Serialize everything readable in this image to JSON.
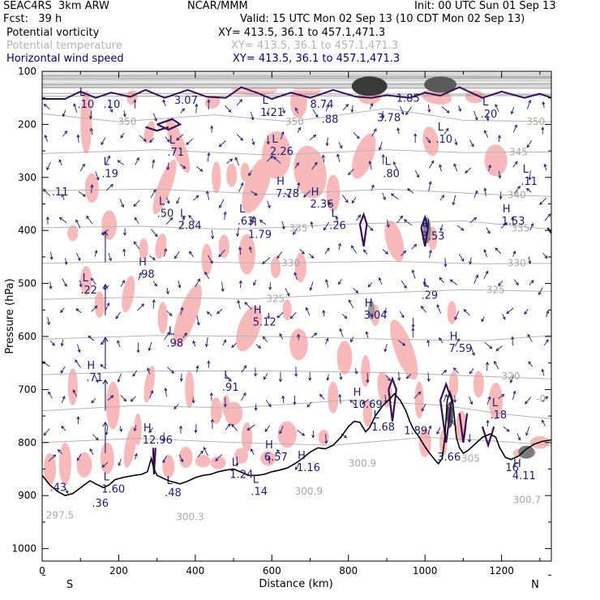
{
  "header": {
    "left_line1": "SEAC4RS  3km ARW",
    "left_line2": "Fcst:   39 h",
    "center": "NCAR/MMM",
    "init": "Init: 00 UTC Sun 01 Sep 13",
    "valid": "Valid: 15 UTC Mon 02 Sep 13 (10 CDT Mon 02 Sep 13)",
    "fields": [
      {
        "name": "Potential vorticity",
        "xy": "XY= 413.5, 36.1 to 457.1,471.3",
        "color": "#000000"
      },
      {
        "name": "Potential temperature",
        "xy": "XY= 413.5, 36.1 to 457.1,471.3",
        "color": "#b4b4b4"
      },
      {
        "name": "Horizontal wind speed",
        "xy": "XY= 413.5, 36.1 to 457.1,471.3",
        "color": "#00007a"
      }
    ]
  },
  "chart_data": {
    "type": "cross-section",
    "xlabel": "Distance (km)",
    "ylabel": "Pressure (hPa)",
    "xlim": [
      0,
      1320
    ],
    "ylim": [
      100,
      1050
    ],
    "y_scale": "linear, inverted",
    "x_ticks": [
      0,
      200,
      400,
      600,
      800,
      1000,
      1200
    ],
    "y_ticks": [
      100,
      200,
      300,
      400,
      500,
      600,
      700,
      800,
      900,
      1000
    ],
    "x_end_labels": {
      "left": "S",
      "right": "N"
    },
    "colors": {
      "theta_contour": "#b4b4b4",
      "pv_contour": "#3b0e5c",
      "pv_shading": "#f7b9b9",
      "wind_arrows": "#1c1c78",
      "terrain": "#000000"
    },
    "potential_temperature_labels": [
      {
        "x": 198,
        "p": 195,
        "text": "350"
      },
      {
        "x": 635,
        "p": 195,
        "text": "350"
      },
      {
        "x": 1265,
        "p": 195,
        "text": "350"
      },
      {
        "x": 1220,
        "p": 252,
        "text": "345"
      },
      {
        "x": 1215,
        "p": 333,
        "text": "340"
      },
      {
        "x": 645,
        "p": 396,
        "text": "335"
      },
      {
        "x": 1225,
        "p": 396,
        "text": "335"
      },
      {
        "x": 625,
        "p": 462,
        "text": "330"
      },
      {
        "x": 1215,
        "p": 462,
        "text": "330"
      },
      {
        "x": 585,
        "p": 529,
        "text": "325"
      },
      {
        "x": 1160,
        "p": 512,
        "text": "325"
      },
      {
        "x": 1200,
        "p": 675,
        "text": "320"
      },
      {
        "x": 1290,
        "p": 718,
        "text": "-0"
      },
      {
        "x": 800,
        "p": 839,
        "text": "300.9"
      },
      {
        "x": 660,
        "p": 892,
        "text": "300.9"
      },
      {
        "x": 1095,
        "p": 830,
        "text": "305"
      },
      {
        "x": 1230,
        "p": 908,
        "text": "300.7"
      },
      {
        "x": 350,
        "p": 940,
        "text": "300.3"
      },
      {
        "x": 10,
        "p": 937,
        "text": "297.5"
      }
    ],
    "pv_high_low_labels": [
      {
        "x": 92,
        "p": 160,
        "letter": "L",
        "value": ".10"
      },
      {
        "x": 160,
        "p": 160,
        "letter": "",
        "value": ".10"
      },
      {
        "x": 345,
        "p": 152,
        "letter": "",
        "value": "3.07"
      },
      {
        "x": 570,
        "p": 175,
        "letter": "L",
        "value": "1.21"
      },
      {
        "x": 700,
        "p": 160,
        "letter": "",
        "value": "8.74"
      },
      {
        "x": 730,
        "p": 188,
        "letter": "",
        "value": ".88"
      },
      {
        "x": 875,
        "p": 185,
        "letter": "",
        "value": "3.78"
      },
      {
        "x": 925,
        "p": 148,
        "letter": "",
        "value": "1.85"
      },
      {
        "x": 1145,
        "p": 178,
        "letter": "L",
        "value": ".20"
      },
      {
        "x": 1028,
        "p": 225,
        "letter": "L",
        "value": ".10"
      },
      {
        "x": 327,
        "p": 250,
        "letter": "L",
        "value": ".71"
      },
      {
        "x": 595,
        "p": 248,
        "letter": "L",
        "value": "2.26"
      },
      {
        "x": 155,
        "p": 290,
        "letter": "L",
        "value": ".19"
      },
      {
        "x": 890,
        "p": 290,
        "letter": "L",
        "value": ".80"
      },
      {
        "x": 1250,
        "p": 305,
        "letter": "L",
        "value": ".11"
      },
      {
        "x": 25,
        "p": 325,
        "letter": "",
        "value": ".11"
      },
      {
        "x": 610,
        "p": 328,
        "letter": "H",
        "value": "7.78"
      },
      {
        "x": 700,
        "p": 348,
        "letter": "H",
        "value": "2.36"
      },
      {
        "x": 300,
        "p": 365,
        "letter": "L",
        "value": ".50"
      },
      {
        "x": 355,
        "p": 388,
        "letter": "L",
        "value": "2.84"
      },
      {
        "x": 510,
        "p": 380,
        "letter": "L",
        "value": ".63"
      },
      {
        "x": 750,
        "p": 388,
        "letter": "L",
        "value": ".26"
      },
      {
        "x": 1200,
        "p": 380,
        "letter": "H",
        "value": "1.53"
      },
      {
        "x": 538,
        "p": 405,
        "letter": "H",
        "value": "1.79"
      },
      {
        "x": 990,
        "p": 408,
        "letter": "H",
        "value": "3.53"
      },
      {
        "x": 250,
        "p": 480,
        "letter": "H",
        "value": ".98"
      },
      {
        "x": 100,
        "p": 510,
        "letter": "L",
        "value": ".22"
      },
      {
        "x": 990,
        "p": 520,
        "letter": "L",
        "value": ".29"
      },
      {
        "x": 550,
        "p": 570,
        "letter": "H",
        "value": "5.12"
      },
      {
        "x": 840,
        "p": 557,
        "letter": "H",
        "value": "3.04"
      },
      {
        "x": 325,
        "p": 610,
        "letter": "L",
        "value": ".98"
      },
      {
        "x": 1062,
        "p": 620,
        "letter": "H",
        "value": "7.59"
      },
      {
        "x": 115,
        "p": 675,
        "letter": "H",
        "value": ".71"
      },
      {
        "x": 470,
        "p": 693,
        "letter": "L",
        "value": ".91"
      },
      {
        "x": 810,
        "p": 725,
        "letter": "H",
        "value": "10.69"
      },
      {
        "x": 860,
        "p": 768,
        "letter": "L",
        "value": "1.68"
      },
      {
        "x": 945,
        "p": 775,
        "letter": "",
        "value": "1.89"
      },
      {
        "x": 1170,
        "p": 745,
        "letter": "L",
        "value": ".18"
      },
      {
        "x": 262,
        "p": 793,
        "letter": "H",
        "value": "12.96"
      },
      {
        "x": 580,
        "p": 825,
        "letter": "H",
        "value": "6.57"
      },
      {
        "x": 665,
        "p": 845,
        "letter": "H",
        "value": "1.16"
      },
      {
        "x": 1032,
        "p": 825,
        "letter": "",
        "value": "3.66"
      },
      {
        "x": 490,
        "p": 858,
        "letter": "L",
        "value": "1.24"
      },
      {
        "x": 1228,
        "p": 860,
        "letter": "H",
        "value": "4.11"
      },
      {
        "x": 1210,
        "p": 845,
        "letter": "",
        "value": "16"
      },
      {
        "x": 20,
        "p": 882,
        "letter": "",
        "value": ".43"
      },
      {
        "x": 155,
        "p": 885,
        "letter": "L",
        "value": "1.60"
      },
      {
        "x": 320,
        "p": 892,
        "letter": "L",
        "value": ".48"
      },
      {
        "x": 545,
        "p": 890,
        "letter": "L",
        "value": ".14"
      },
      {
        "x": 130,
        "p": 912,
        "letter": "",
        "value": ".36"
      }
    ]
  }
}
